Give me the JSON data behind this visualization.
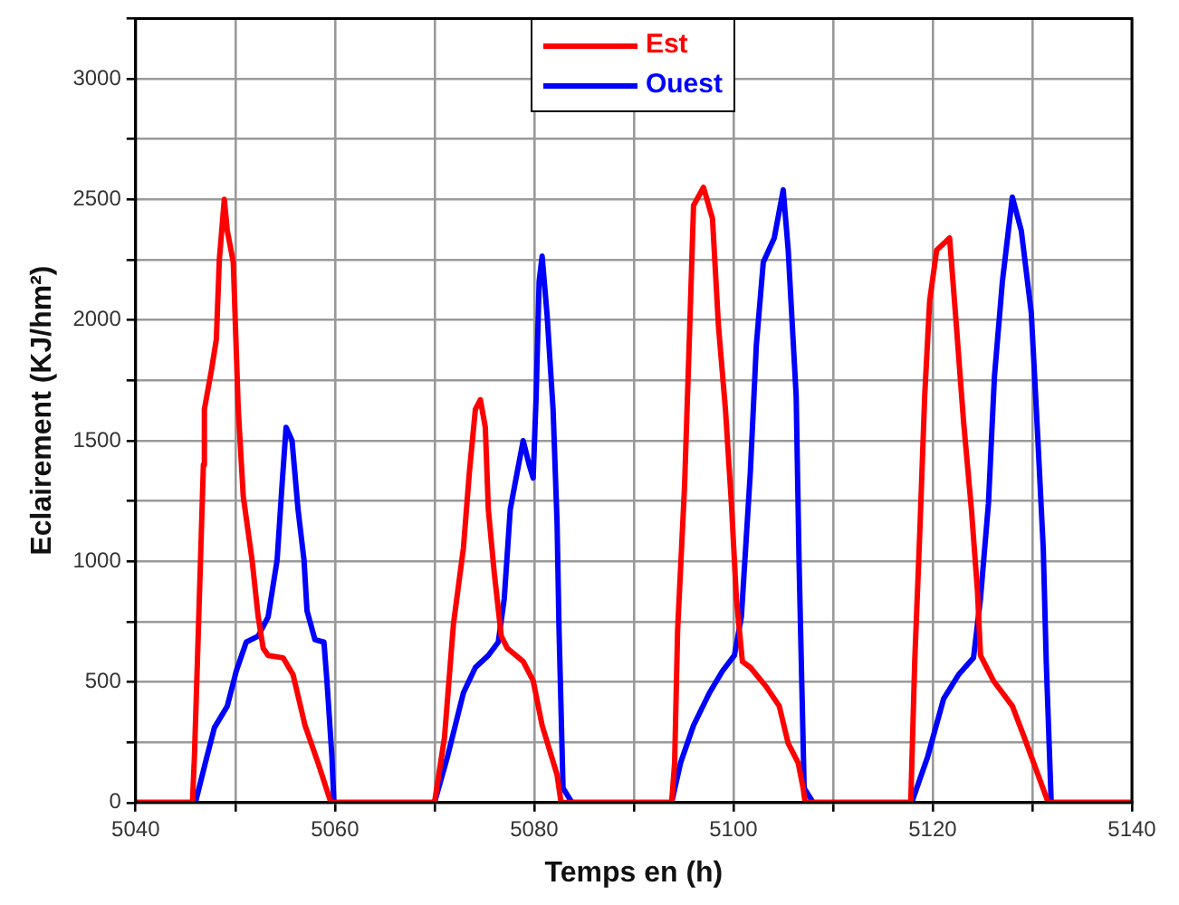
{
  "chart_data": {
    "type": "line",
    "xlabel": "Temps en (h)",
    "ylabel": "Eclairement (KJ/hm²)",
    "xlim": [
      5040,
      5140
    ],
    "xticks": [
      5040,
      {
        "value": 5050,
        "label": null
      },
      5060,
      {
        "value": 5070,
        "label": null
      },
      5080,
      {
        "value": 5090,
        "label": null
      },
      5100,
      {
        "value": 5110,
        "label": null
      },
      5120,
      {
        "value": 5130,
        "label": null
      },
      5140
    ],
    "ylim": [
      0,
      3250
    ],
    "yticks": [
      0,
      {
        "value": 250,
        "label": null
      },
      500,
      {
        "value": 750,
        "label": null
      },
      1000,
      {
        "value": 1250,
        "label": null
      },
      1500,
      {
        "value": 1750,
        "label": null
      },
      2000,
      {
        "value": 2250,
        "label": null
      },
      2500,
      {
        "value": 2750,
        "label": null
      },
      3000,
      {
        "value": 3250,
        "label": null
      }
    ],
    "grid": true,
    "legend": "top",
    "marker": "none",
    "line_style": "solid",
    "series": [
      {
        "name": "Est",
        "color": "#ff0000",
        "x": [
          5040,
          5045.7,
          5045.9,
          5046.2,
          5046.5,
          5046.8,
          5046.9,
          5047.6,
          5048.1,
          5048.4,
          5048.9,
          5049.2,
          5049.8,
          5050.3,
          5050.8,
          5051.7,
          5052.3,
          5052.8,
          5053.3,
          5054.8,
          5055.8,
          5057,
          5058.3,
          5059.6,
          5070,
          5071,
          5071.9,
          5072.9,
          5073.5,
          5074.1,
          5074.6,
          5075.1,
          5075.4,
          5076,
          5076.7,
          5077.3,
          5078.9,
          5079.9,
          5080.8,
          5082.3,
          5082.7,
          5093.8,
          5094.1,
          5094.4,
          5095.1,
          5095.6,
          5096,
          5097,
          5097.9,
          5098.5,
          5099.2,
          5099.8,
          5100.3,
          5100.9,
          5101.7,
          5103.3,
          5104.6,
          5105.5,
          5106.5,
          5107,
          5107.2,
          5117.8,
          5118.2,
          5118.7,
          5119.2,
          5119.7,
          5120.4,
          5121.7,
          5122.3,
          5123.1,
          5123.9,
          5124.5,
          5124.8,
          5126.1,
          5128,
          5129.2,
          5131.6,
          5140
        ],
        "values": [
          0,
          0,
          190,
          585,
          990,
          1400,
          1630,
          1790,
          1920,
          2250,
          2500,
          2370,
          2240,
          1630,
          1270,
          1000,
          770,
          640,
          610,
          600,
          530,
          320,
          165,
          0,
          0,
          270,
          740,
          1055,
          1370,
          1630,
          1670,
          1555,
          1215,
          950,
          690,
          640,
          585,
          505,
          320,
          115,
          0,
          0,
          165,
          715,
          1315,
          1950,
          2475,
          2550,
          2420,
          1975,
          1630,
          1240,
          845,
          585,
          560,
          480,
          400,
          245,
          165,
          60,
          0,
          0,
          585,
          1110,
          1685,
          2080,
          2290,
          2340,
          2020,
          1580,
          1210,
          875,
          610,
          505,
          400,
          270,
          0,
          0
        ]
      },
      {
        "name": "Ouest",
        "color": "#0000ff",
        "x": [
          5040,
          5046,
          5047,
          5047.9,
          5049.2,
          5050.1,
          5051.1,
          5052.3,
          5053.3,
          5054.2,
          5054.7,
          5055.1,
          5055.7,
          5056.3,
          5056.9,
          5057.2,
          5058,
          5058.9,
          5059.2,
          5059.7,
          5059.9,
          5070,
          5071.3,
          5072.9,
          5074.1,
          5075.4,
          5076.4,
          5077,
          5077.6,
          5078.3,
          5078.9,
          5079.5,
          5079.9,
          5080.2,
          5080.5,
          5080.8,
          5081.3,
          5081.9,
          5082.3,
          5082.5,
          5082.9,
          5083.8,
          5093.8,
          5094.7,
          5096,
          5097.6,
          5098.9,
          5100.1,
          5100.8,
          5101.7,
          5102.3,
          5103,
          5104.1,
          5105,
          5105.5,
          5106.3,
          5106.6,
          5107.1,
          5108,
          5117.9,
          5119.5,
          5121.1,
          5122.6,
          5124.1,
          5124.8,
          5125.6,
          5126.2,
          5127,
          5128,
          5128.9,
          5129.9,
          5130.5,
          5131.1,
          5131.4,
          5131.9,
          5140
        ],
        "values": [
          0,
          0,
          165,
          310,
          400,
          545,
          665,
          690,
          770,
          1005,
          1320,
          1555,
          1500,
          1215,
          1005,
          795,
          675,
          665,
          505,
          190,
          0,
          0,
          190,
          455,
          560,
          610,
          665,
          845,
          1215,
          1370,
          1500,
          1400,
          1345,
          1685,
          2160,
          2265,
          2020,
          1630,
          1160,
          715,
          60,
          0,
          0,
          165,
          320,
          455,
          545,
          610,
          770,
          1370,
          1895,
          2240,
          2340,
          2540,
          2290,
          1685,
          980,
          60,
          0,
          0,
          190,
          430,
          530,
          600,
          845,
          1240,
          1765,
          2160,
          2510,
          2370,
          2030,
          1555,
          1055,
          585,
          0,
          0
        ]
      }
    ]
  }
}
